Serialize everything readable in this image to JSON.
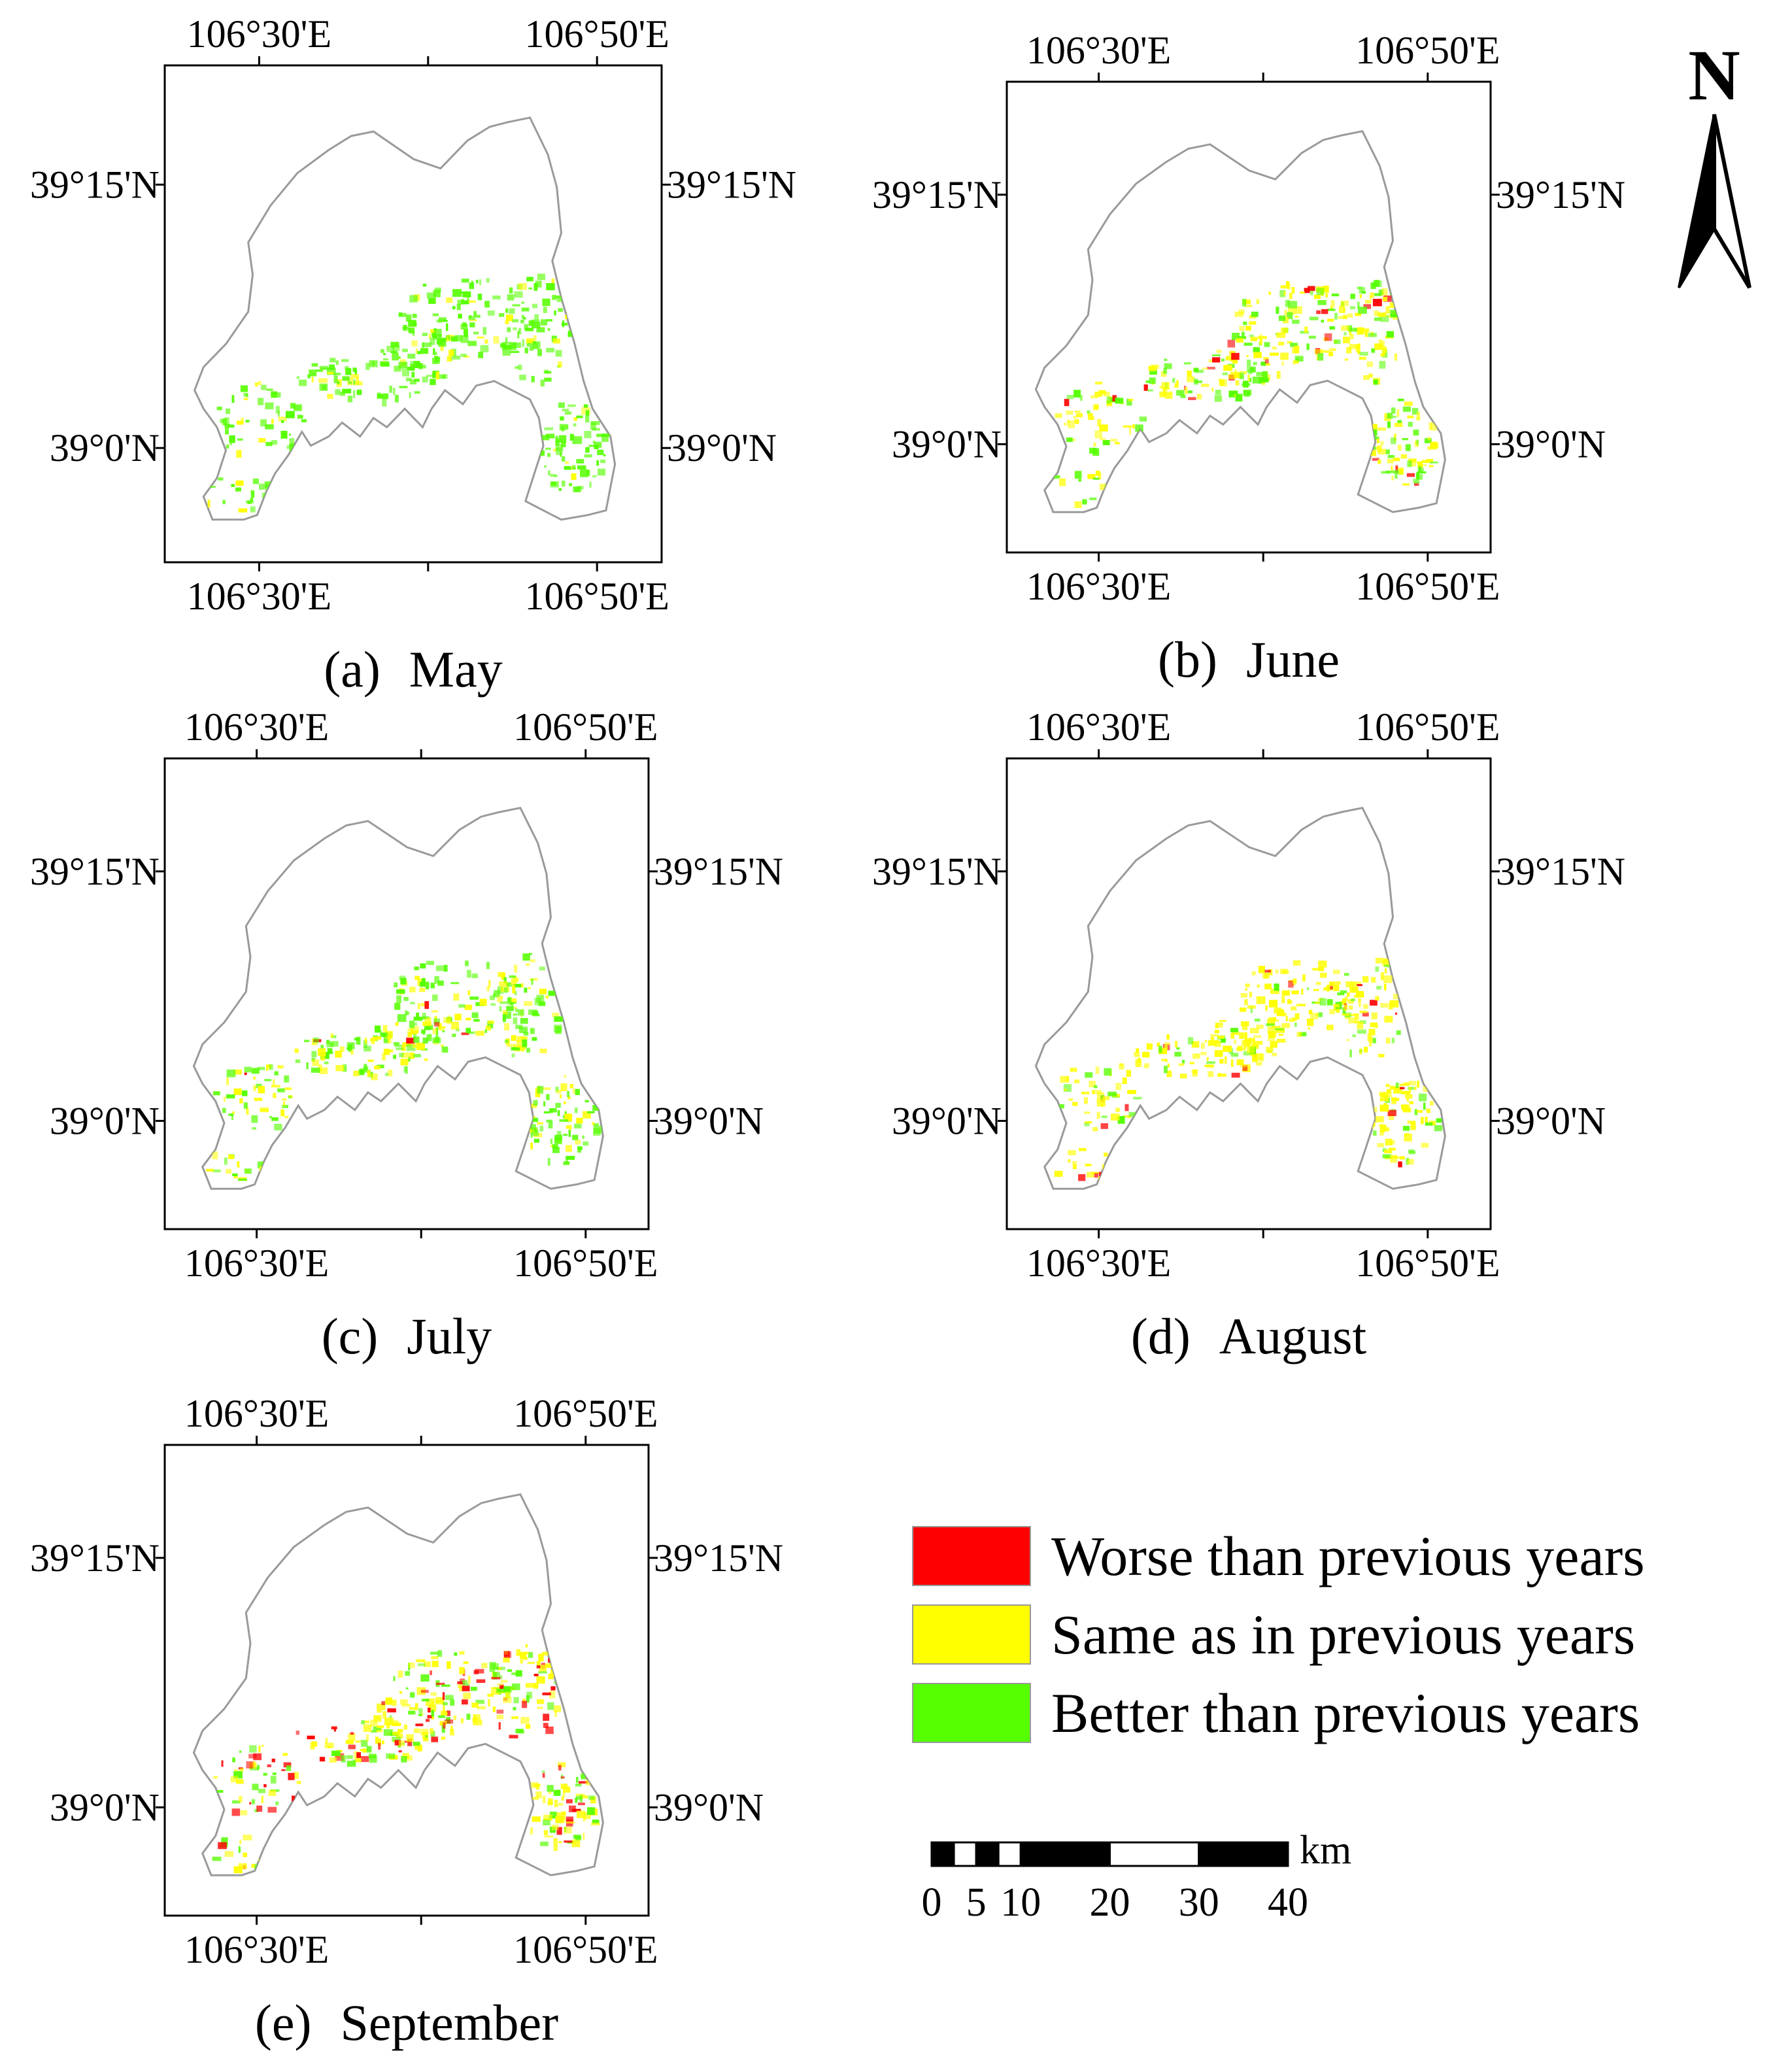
{
  "figure": {
    "panels": [
      {
        "id": "a",
        "letter": "(a)",
        "month": "May",
        "lon_labels": [
          "106°30'E",
          "106°50'E"
        ],
        "lat_labels": [
          "39°15'N",
          "39°0'N"
        ],
        "dominant_class": "better"
      },
      {
        "id": "b",
        "letter": "(b)",
        "month": "June",
        "lon_labels": [
          "106°30'E",
          "106°50'E"
        ],
        "lat_labels": [
          "39°15'N",
          "39°0'N"
        ],
        "dominant_class": "mixed"
      },
      {
        "id": "c",
        "letter": "(c)",
        "month": "July",
        "lon_labels": [
          "106°30'E",
          "106°50'E"
        ],
        "lat_labels": [
          "39°15'N",
          "39°0'N"
        ],
        "dominant_class": "mixed-green"
      },
      {
        "id": "d",
        "letter": "(d)",
        "month": "August",
        "lon_labels": [
          "106°30'E",
          "106°50'E"
        ],
        "lat_labels": [
          "39°15'N",
          "39°0'N"
        ],
        "dominant_class": "same"
      },
      {
        "id": "e",
        "letter": "(e)",
        "month": "September",
        "lon_labels": [
          "106°30'E",
          "106°50'E"
        ],
        "lat_labels": [
          "39°15'N",
          "39°0'N"
        ],
        "dominant_class": "mixed-red"
      }
    ],
    "legend": [
      {
        "label": "Worse than previous years",
        "color": "#ff0000"
      },
      {
        "label": "Same as in previous years",
        "color": "#ffff00"
      },
      {
        "label": "Better than previous years",
        "color": "#55ff00"
      }
    ],
    "scale_bar": {
      "unit": "km",
      "ticks": [
        "0",
        "5",
        "10",
        "20",
        "30",
        "40"
      ]
    },
    "north_arrow": {
      "label": "N"
    },
    "colors": {
      "boundary": "#9a9a9a",
      "frame": "#000000",
      "background": "#ffffff"
    }
  }
}
